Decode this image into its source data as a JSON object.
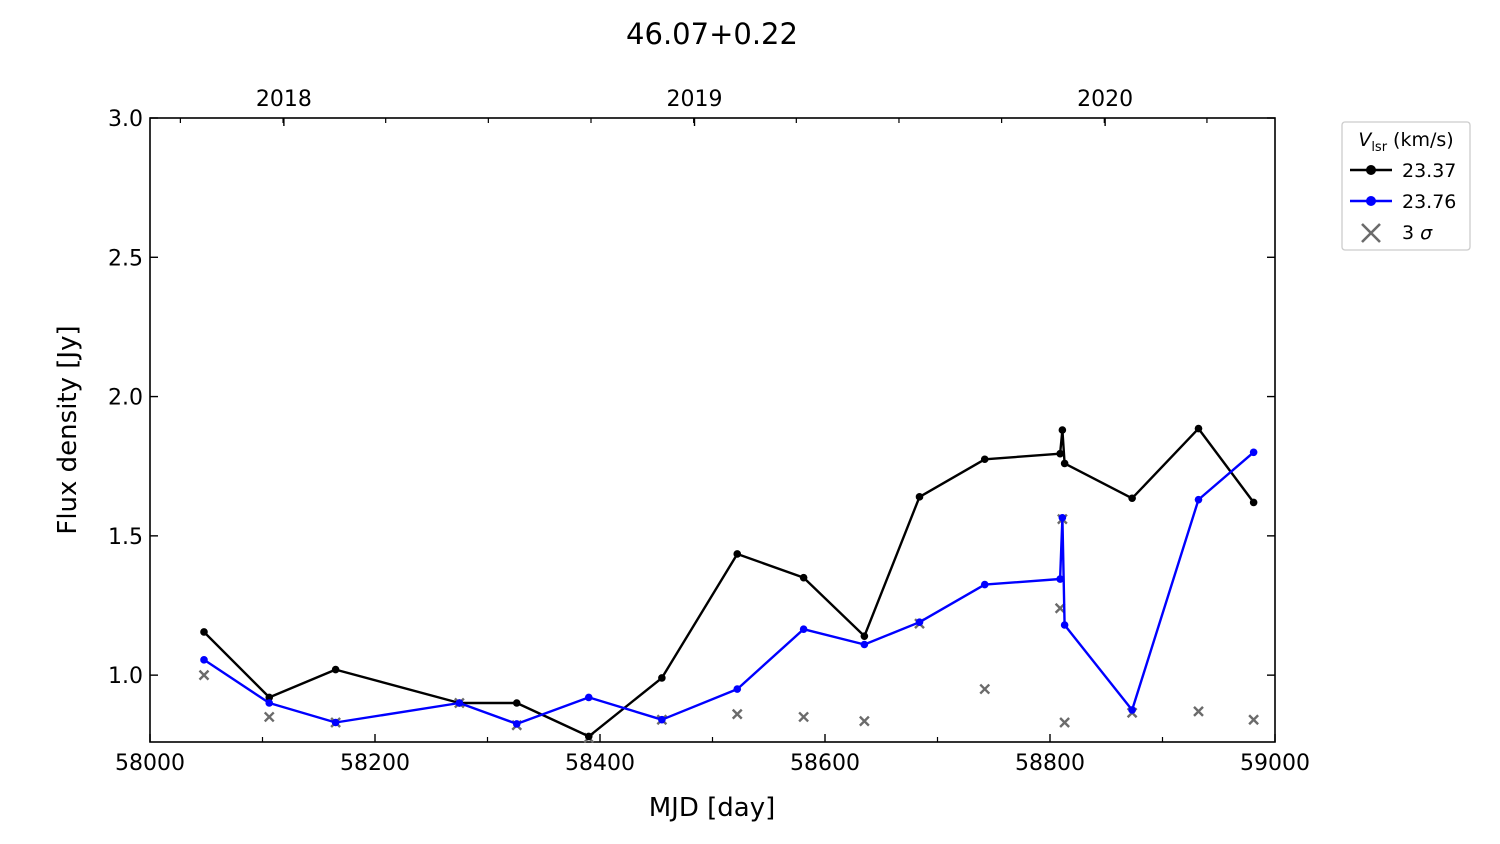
{
  "chart_data": {
    "type": "line",
    "title": "46.07+0.22",
    "xlabel": "MJD [day]",
    "ylabel": "Flux density [Jy]",
    "xlim": [
      58000,
      59000
    ],
    "ylim": [
      0.76,
      3.0
    ],
    "xticks": [
      58000,
      58200,
      58400,
      58600,
      58800,
      59000
    ],
    "yticks": [
      1.0,
      1.5,
      2.0,
      2.5,
      3.0
    ],
    "ytick_labels": [
      "1.0",
      "1.5",
      "2.0",
      "2.5",
      "3.0"
    ],
    "top_axis_ticks": [
      {
        "x": 58119,
        "label": "2018"
      },
      {
        "x": 58484,
        "label": "2019"
      },
      {
        "x": 58849,
        "label": "2020"
      }
    ],
    "grid": false,
    "legend": {
      "position": "outside-right",
      "title_symbol": "V",
      "title_subscript": "lsr",
      "title_units": "(km/s)",
      "sigma_prefix": "3",
      "sigma_symbol": "σ"
    },
    "series": [
      {
        "name": "23.37",
        "color": "#000000",
        "marker": "circle",
        "x": [
          58048,
          58106,
          58165,
          58275,
          58326,
          58390,
          58455,
          58522,
          58581,
          58635,
          58684,
          58742,
          58809,
          58811,
          58813,
          58873,
          58932,
          58981
        ],
        "y": [
          1.155,
          0.92,
          1.02,
          0.9,
          0.9,
          0.78,
          0.99,
          1.435,
          1.35,
          1.14,
          1.64,
          1.775,
          1.795,
          1.88,
          1.76,
          1.635,
          1.885,
          1.62
        ]
      },
      {
        "name": "23.76",
        "color": "#0000ff",
        "marker": "circle",
        "x": [
          58048,
          58106,
          58165,
          58275,
          58326,
          58390,
          58455,
          58522,
          58581,
          58635,
          58684,
          58742,
          58809,
          58811,
          58813,
          58873,
          58932,
          58981
        ],
        "y": [
          1.055,
          0.9,
          0.83,
          0.9,
          0.825,
          0.92,
          0.84,
          0.95,
          1.165,
          1.11,
          1.19,
          1.325,
          1.345,
          1.565,
          1.18,
          0.875,
          1.63,
          1.8
        ]
      },
      {
        "name": "3 σ",
        "color": "#6b6b6b",
        "marker": "x",
        "x": [
          58048,
          58106,
          58165,
          58275,
          58326,
          58390,
          58455,
          58522,
          58581,
          58635,
          58684,
          58742,
          58809,
          58811,
          58813,
          58873,
          58932,
          58981
        ],
        "y": [
          1.0,
          0.85,
          0.83,
          0.9,
          0.82,
          0.775,
          0.84,
          0.86,
          0.85,
          0.835,
          1.185,
          0.95,
          1.24,
          1.56,
          0.83,
          0.865,
          0.87,
          0.84
        ]
      }
    ]
  }
}
